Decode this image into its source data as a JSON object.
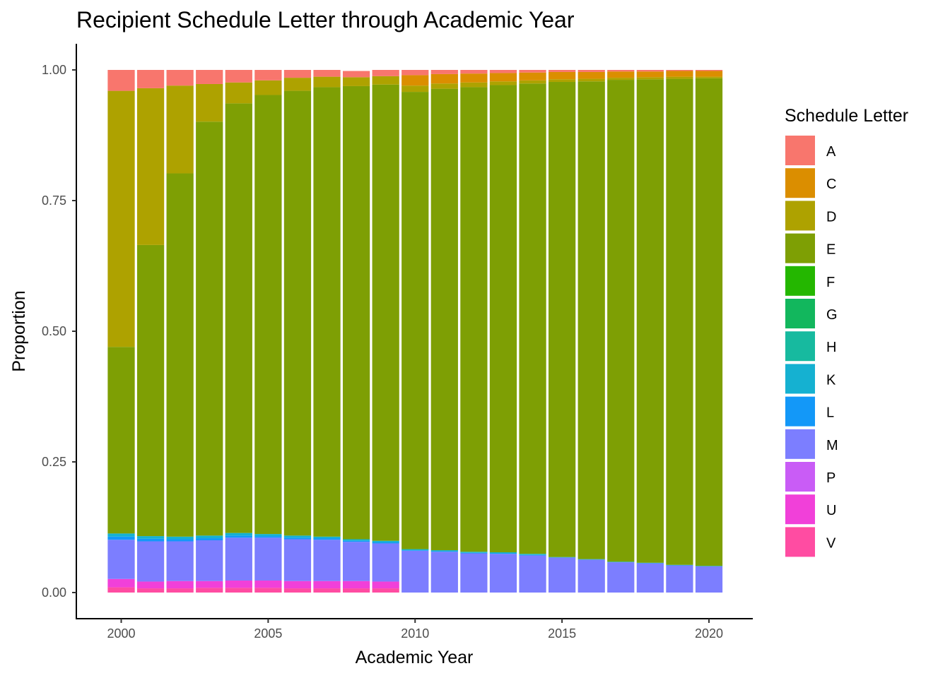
{
  "chart_data": {
    "type": "bar",
    "stacked": true,
    "title": "Recipient Schedule Letter through Academic Year",
    "xlabel": "Academic Year",
    "ylabel": "Proportion",
    "xlim": [
      1999.5,
      2020.5
    ],
    "ylim": [
      0,
      1
    ],
    "grid": false,
    "legend_position": "right",
    "x_ticks": [
      2000,
      2005,
      2010,
      2015,
      2020
    ],
    "y_ticks": [
      0,
      0.25,
      0.5,
      0.75,
      1.0
    ],
    "y_tick_labels": [
      "0.00",
      "0.25",
      "0.50",
      "0.75",
      "1.00"
    ],
    "legend_title": "Schedule Letter",
    "categories": [
      2000,
      2001,
      2002,
      2003,
      2004,
      2005,
      2006,
      2007,
      2008,
      2009,
      2010,
      2011,
      2012,
      2013,
      2014,
      2015,
      2016,
      2017,
      2018,
      2019,
      2020
    ],
    "series": [
      {
        "name": "A",
        "color": "#F8766D",
        "values": [
          0.04,
          0.035,
          0.03,
          0.027,
          0.024,
          0.02,
          0.015,
          0.013,
          0.012,
          0.012,
          0.01,
          0.008,
          0.007,
          0.006,
          0.005,
          0.004,
          0.004,
          0.003,
          0.003,
          0.002,
          0.002
        ]
      },
      {
        "name": "C",
        "color": "#DB8E00",
        "values": [
          0,
          0,
          0,
          0,
          0,
          0,
          0,
          0,
          0,
          0,
          0.02,
          0.018,
          0.017,
          0.016,
          0.015,
          0.014,
          0.013,
          0.012,
          0.011,
          0.011,
          0.011
        ]
      },
      {
        "name": "D",
        "color": "#AEA200",
        "values": [
          0.49,
          0.3,
          0.168,
          0.072,
          0.04,
          0.028,
          0.025,
          0.02,
          0.017,
          0.016,
          0.012,
          0.01,
          0.009,
          0.007,
          0.006,
          0.005,
          0.005,
          0.004,
          0.004,
          0.004,
          0.003
        ]
      },
      {
        "name": "E",
        "color": "#7E9F04",
        "values": [
          0.357,
          0.557,
          0.695,
          0.792,
          0.822,
          0.84,
          0.851,
          0.86,
          0.867,
          0.873,
          0.875,
          0.883,
          0.889,
          0.894,
          0.9,
          0.909,
          0.914,
          0.922,
          0.925,
          0.93,
          0.933
        ]
      },
      {
        "name": "F",
        "color": "#24B700",
        "values": [
          0,
          0,
          0,
          0,
          0,
          0,
          0,
          0,
          0,
          0,
          0,
          0,
          0,
          0,
          0,
          0,
          0,
          0,
          0,
          0,
          0
        ]
      },
      {
        "name": "G",
        "color": "#12B75D",
        "values": [
          0,
          0,
          0,
          0,
          0,
          0,
          0,
          0,
          0,
          0,
          0,
          0,
          0,
          0,
          0,
          0,
          0,
          0,
          0,
          0,
          0
        ]
      },
      {
        "name": "H",
        "color": "#17BA9F",
        "values": [
          0,
          0,
          0,
          0,
          0,
          0,
          0,
          0,
          0,
          0,
          0,
          0,
          0,
          0,
          0,
          0,
          0,
          0,
          0,
          0,
          0
        ]
      },
      {
        "name": "K",
        "color": "#15B1D1",
        "values": [
          0.006,
          0.005,
          0.005,
          0.005,
          0.005,
          0.004,
          0.004,
          0.003,
          0.003,
          0.003,
          0.002,
          0.002,
          0.002,
          0.002,
          0.002,
          0.001,
          0.001,
          0.001,
          0.001,
          0.001,
          0.001
        ]
      },
      {
        "name": "L",
        "color": "#1398F8",
        "values": [
          0.006,
          0.005,
          0.004,
          0.004,
          0.004,
          0.003,
          0.003,
          0.003,
          0.002,
          0.002,
          0.001,
          0.001,
          0.001,
          0.001,
          0.001,
          0,
          0,
          0,
          0,
          0,
          0
        ]
      },
      {
        "name": "M",
        "color": "#7C7EFF",
        "values": [
          0.075,
          0.077,
          0.076,
          0.078,
          0.082,
          0.082,
          0.08,
          0.079,
          0.075,
          0.073,
          0.08,
          0.078,
          0.075,
          0.074,
          0.071,
          0.067,
          0.063,
          0.058,
          0.056,
          0.052,
          0.05
        ]
      },
      {
        "name": "P",
        "color": "#C95CF6",
        "values": [
          0,
          0,
          0,
          0,
          0,
          0,
          0,
          0,
          0,
          0,
          0,
          0,
          0,
          0,
          0,
          0,
          0,
          0,
          0,
          0,
          0
        ]
      },
      {
        "name": "U",
        "color": "#F140D9",
        "values": [
          0.016,
          0.013,
          0.014,
          0.013,
          0.014,
          0.014,
          0.014,
          0.014,
          0.014,
          0.013,
          0,
          0,
          0,
          0,
          0,
          0,
          0,
          0,
          0,
          0,
          0
        ]
      },
      {
        "name": "V",
        "color": "#FF4CA2",
        "values": [
          0.01,
          0.008,
          0.008,
          0.009,
          0.009,
          0.009,
          0.008,
          0.008,
          0.008,
          0.008,
          0,
          0,
          0,
          0,
          0,
          0,
          0,
          0,
          0,
          0,
          0
        ]
      }
    ]
  }
}
